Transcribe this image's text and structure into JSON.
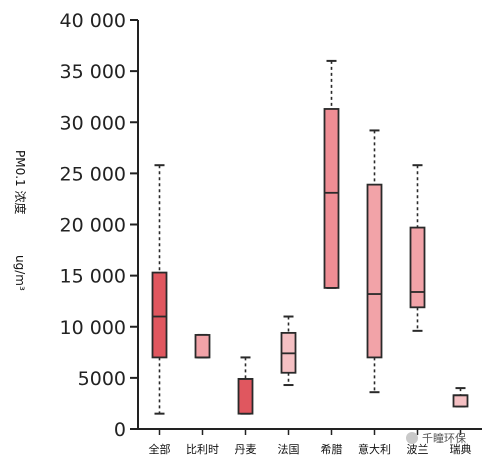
{
  "chart_data": {
    "type": "box",
    "ylabel": "PM0.1 浓度",
    "yunit": "ug/m³",
    "ylim": [
      0,
      40000
    ],
    "yticks": [
      0,
      5000,
      10000,
      15000,
      20000,
      25000,
      30000,
      35000,
      40000
    ],
    "ytick_labels": [
      "0",
      "5000",
      "10 000",
      "15 000",
      "20 000",
      "25 000",
      "30 000",
      "35 000",
      "40 000"
    ],
    "categories": [
      "全部",
      "比利时",
      "丹麦",
      "法国",
      "希腊",
      "意大利",
      "波兰",
      "瑞典"
    ],
    "boxes": [
      {
        "min": 1500,
        "q1": 7000,
        "median": 11000,
        "q3": 15300,
        "max": 25800,
        "color": "#e0575f"
      },
      {
        "min": 7000,
        "q1": 7000,
        "median": 7000,
        "q3": 9200,
        "max": 9200,
        "color": "#f2a3a8"
      },
      {
        "min": 1500,
        "q1": 1500,
        "median": 4900,
        "q3": 4900,
        "max": 7000,
        "color": "#e0575f"
      },
      {
        "min": 4300,
        "q1": 5500,
        "median": 7400,
        "q3": 9400,
        "max": 11000,
        "color": "#f5c0c3"
      },
      {
        "min": 13800,
        "q1": 13800,
        "median": 23100,
        "q3": 31300,
        "max": 36000,
        "color": "#ef8d94"
      },
      {
        "min": 3600,
        "q1": 7000,
        "median": 13200,
        "q3": 23900,
        "max": 29200,
        "color": "#f2a3a8"
      },
      {
        "min": 9600,
        "q1": 11900,
        "median": 13400,
        "q3": 19700,
        "max": 25800,
        "color": "#f2a3a8"
      },
      {
        "min": 2200,
        "q1": 2200,
        "median": 3300,
        "q3": 3300,
        "max": 4000,
        "color": "#f5c0c3"
      }
    ],
    "grid": false
  },
  "watermark": "千瞳环保",
  "colors": {
    "axis": "#222222",
    "box_edge": "#2a2a2a"
  }
}
